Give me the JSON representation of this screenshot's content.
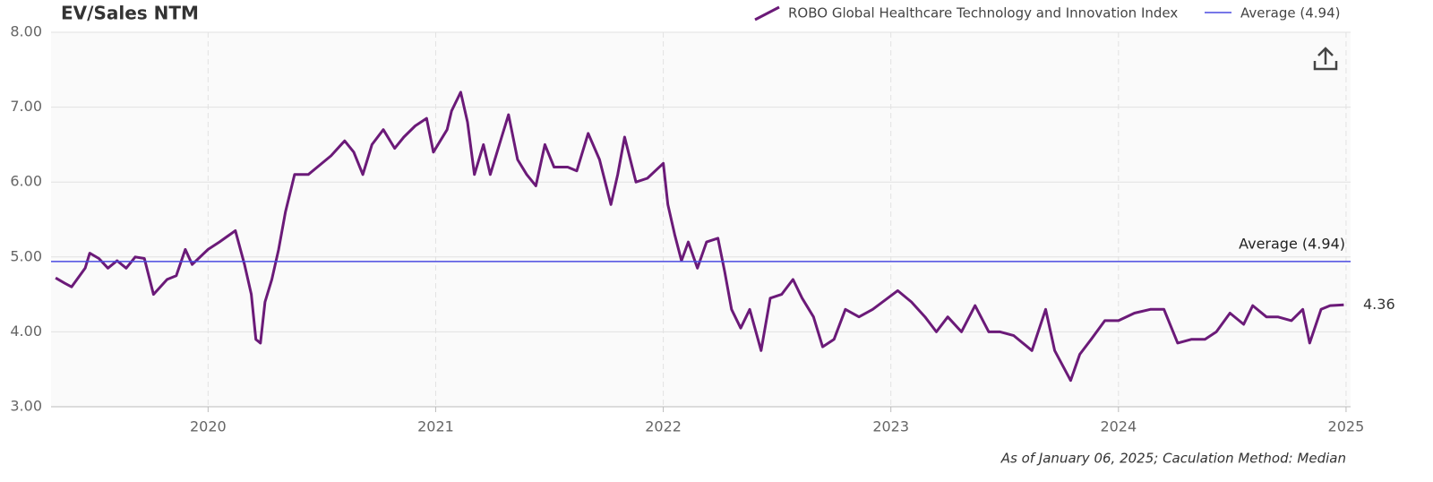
{
  "chart_data": {
    "type": "line",
    "title": "EV/Sales NTM",
    "x": [
      2019.33,
      2019.37,
      2019.4,
      2019.46,
      2019.48,
      2019.52,
      2019.56,
      2019.6,
      2019.64,
      2019.68,
      2019.72,
      2019.76,
      2019.82,
      2019.86,
      2019.9,
      2019.93,
      2020.0,
      2020.05,
      2020.12,
      2020.16,
      2020.19,
      2020.21,
      2020.23,
      2020.25,
      2020.28,
      2020.31,
      2020.34,
      2020.38,
      2020.44,
      2020.48,
      2020.54,
      2020.6,
      2020.64,
      2020.68,
      2020.72,
      2020.77,
      2020.82,
      2020.86,
      2020.91,
      2020.96,
      2020.99,
      2021.05,
      2021.07,
      2021.11,
      2021.14,
      2021.17,
      2021.21,
      2021.24,
      2021.29,
      2021.32,
      2021.36,
      2021.4,
      2021.44,
      2021.48,
      2021.52,
      2021.58,
      2021.62,
      2021.67,
      2021.72,
      2021.77,
      2021.8,
      2021.83,
      2021.88,
      2021.93,
      2022.0,
      2022.02,
      2022.05,
      2022.08,
      2022.11,
      2022.15,
      2022.19,
      2022.24,
      2022.27,
      2022.3,
      2022.34,
      2022.38,
      2022.43,
      2022.47,
      2022.52,
      2022.57,
      2022.61,
      2022.66,
      2022.7,
      2022.75,
      2022.8,
      2022.86,
      2022.92,
      2023.03,
      2023.09,
      2023.15,
      2023.2,
      2023.25,
      2023.31,
      2023.37,
      2023.43,
      2023.48,
      2023.54,
      2023.62,
      2023.68,
      2023.72,
      2023.79,
      2023.83,
      2023.88,
      2023.94,
      2024.0,
      2024.07,
      2024.14,
      2024.2,
      2024.26,
      2024.32,
      2024.38,
      2024.43,
      2024.49,
      2024.55,
      2024.59,
      2024.65,
      2024.7,
      2024.76,
      2024.81,
      2024.84,
      2024.89,
      2024.93,
      2024.99
    ],
    "series": [
      {
        "name": "ROBO Global Healthcare Technology and Innovation Index",
        "color": "#6b1a78",
        "values": [
          4.72,
          4.65,
          4.6,
          4.85,
          5.05,
          4.98,
          4.85,
          4.95,
          4.85,
          5.0,
          4.98,
          4.5,
          4.7,
          4.75,
          5.1,
          4.9,
          5.1,
          5.2,
          5.35,
          4.9,
          4.5,
          3.9,
          3.85,
          4.4,
          4.7,
          5.1,
          5.6,
          6.1,
          6.1,
          6.2,
          6.35,
          6.55,
          6.4,
          6.1,
          6.5,
          6.7,
          6.45,
          6.6,
          6.75,
          6.85,
          6.4,
          6.7,
          6.95,
          7.2,
          6.8,
          6.1,
          6.5,
          6.1,
          6.6,
          6.9,
          6.3,
          6.1,
          5.95,
          6.5,
          6.2,
          6.2,
          6.15,
          6.65,
          6.3,
          5.7,
          6.1,
          6.6,
          6.0,
          6.05,
          6.25,
          5.7,
          5.3,
          4.95,
          5.2,
          4.85,
          5.2,
          5.25,
          4.8,
          4.3,
          4.05,
          4.3,
          3.75,
          4.45,
          4.5,
          4.7,
          4.45,
          4.2,
          3.8,
          3.9,
          4.3,
          4.2,
          4.3,
          4.55,
          4.4,
          4.2,
          4.0,
          4.2,
          4.0,
          4.35,
          4.0,
          4.0,
          3.95,
          3.75,
          4.3,
          3.75,
          3.35,
          3.7,
          3.9,
          4.15,
          4.15,
          4.25,
          4.3,
          4.3,
          3.85,
          3.9,
          3.9,
          4.0,
          4.25,
          4.1,
          4.35,
          4.2,
          4.2,
          4.15,
          4.3,
          3.85,
          4.3,
          4.35,
          4.36
        ]
      }
    ],
    "average": {
      "name": "Average (4.94)",
      "value": 4.94,
      "color": "#4a4ae0"
    },
    "xlim": [
      2019.31,
      2025.02
    ],
    "xticks": [
      2020,
      2021,
      2022,
      2023,
      2024,
      2025
    ],
    "ylim": [
      3,
      8
    ],
    "yticks": [
      {
        "value": 3,
        "label": "3.00"
      },
      {
        "value": 4,
        "label": "4.00"
      },
      {
        "value": 5,
        "label": "5.00"
      },
      {
        "value": 6,
        "label": "6.00"
      },
      {
        "value": 7,
        "label": "7.00"
      },
      {
        "value": 8,
        "label": "8.00"
      }
    ],
    "grid": true,
    "footnote": "As of January 06, 2025; Caculation Method: Median"
  }
}
